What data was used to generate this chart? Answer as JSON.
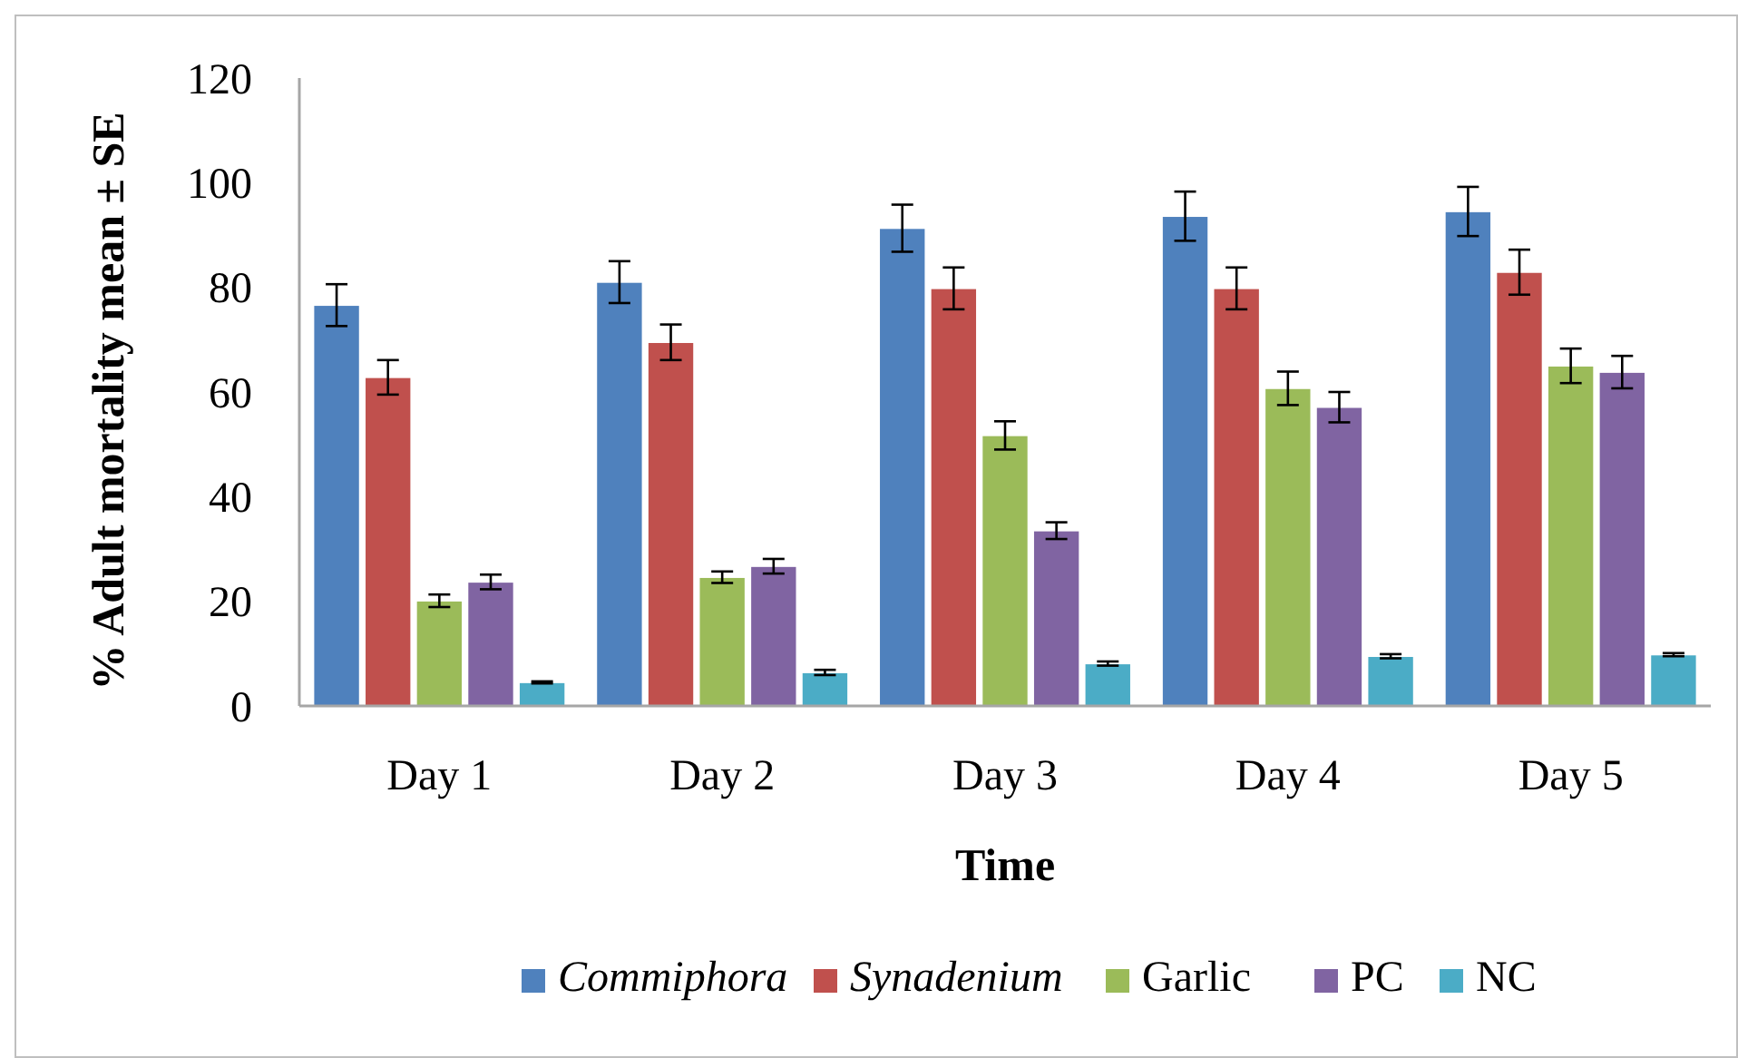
{
  "chart_data": {
    "type": "bar",
    "xlabel": "Time",
    "ylabel": "% Adult mortality mean ± SE",
    "categories": [
      "Day 1",
      "Day 2",
      "Day 3",
      "Day 4",
      "Day 5"
    ],
    "ylim": [
      0,
      120
    ],
    "yticks": [
      0,
      20,
      40,
      60,
      80,
      100,
      120
    ],
    "grid": false,
    "legend": "bottom",
    "series": [
      {
        "name": "Commiphora",
        "color": "#4f81bd",
        "values": [
          76.6,
          81,
          91.3,
          93.6,
          94.5
        ],
        "errors": [
          4,
          4,
          4.5,
          4.7,
          4.7
        ]
      },
      {
        "name": "Synadenium",
        "color": "#c0504d",
        "values": [
          62.8,
          69.5,
          79.8,
          79.8,
          82.9
        ],
        "errors": [
          3.3,
          3.4,
          4,
          4,
          4.3
        ]
      },
      {
        "name": "Garlic",
        "color": "#9bbb59",
        "values": [
          20.1,
          24.6,
          51.7,
          60.7,
          65
        ],
        "errors": [
          1.2,
          1.1,
          2.7,
          3.2,
          3.3
        ]
      },
      {
        "name": "PC",
        "color": "#8064a2",
        "values": [
          23.7,
          26.7,
          33.5,
          57.1,
          63.8
        ],
        "errors": [
          1.4,
          1.4,
          1.6,
          2.9,
          3.1
        ]
      },
      {
        "name": "NC",
        "color": "#4bacc6",
        "values": [
          4.5,
          6.4,
          8.1,
          9.5,
          9.8
        ],
        "errors": [
          0.2,
          0.5,
          0.4,
          0.4,
          0.3
        ]
      }
    ]
  }
}
